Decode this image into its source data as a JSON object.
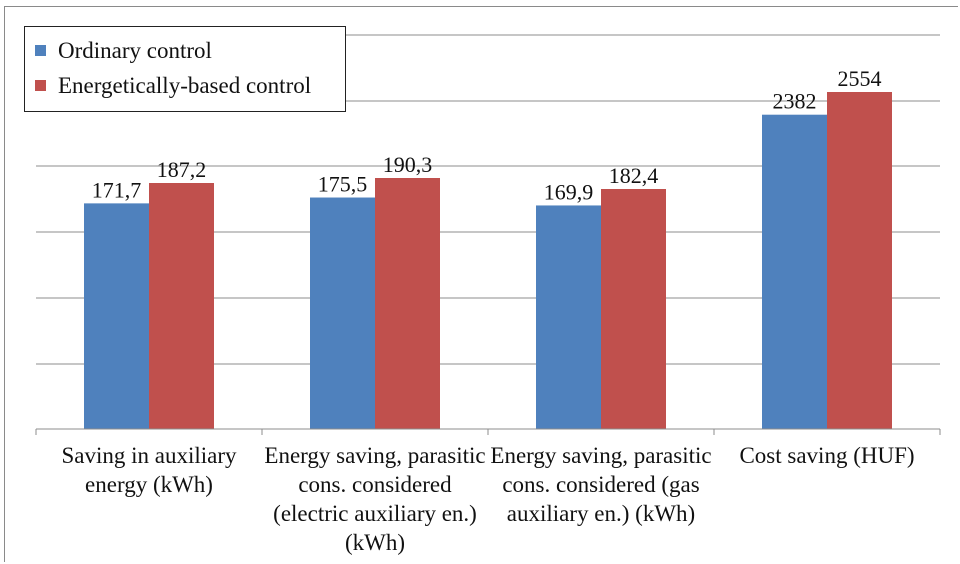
{
  "chart_data": {
    "type": "bar",
    "categories": [
      "Saving in auxiliary energy (kWh)",
      "Energy saving, parasitic cons. considered (electric auxiliary en.) (kWh)",
      "Energy saving, parasitic cons. considered (gas auxiliary en.) (kWh)",
      "Cost saving (HUF)"
    ],
    "series": [
      {
        "name": "Ordinary control",
        "color": "#4f81bd",
        "values": [
          171.7,
          175.5,
          169.9,
          2382
        ],
        "labels": [
          "171,7",
          "175,5",
          "169,9",
          "2382"
        ]
      },
      {
        "name": "Energetically-based control",
        "color": "#c0504d",
        "values": [
          187.2,
          190.3,
          182.4,
          2554
        ],
        "labels": [
          "187,2",
          "190,3",
          "182,4",
          "2554"
        ]
      }
    ],
    "legend_position": "top-left",
    "grid": true,
    "note": "Bars use per-category visual scaling (mixed units kWh vs HUF)"
  }
}
